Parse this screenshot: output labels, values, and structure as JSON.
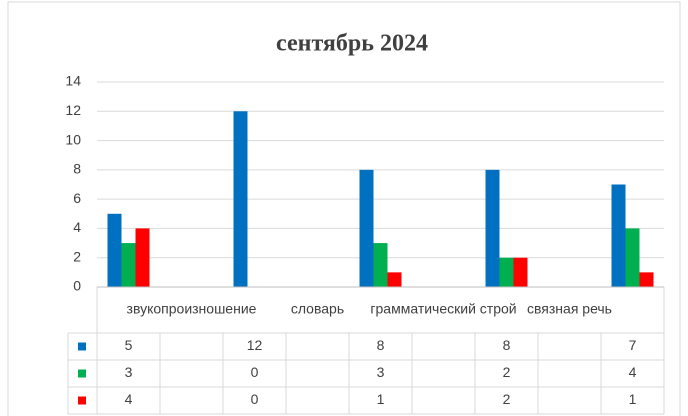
{
  "chart_data": {
    "type": "bar",
    "title": "сентябрь 2024",
    "categories": [
      null,
      "звукопроизношение",
      null,
      "словарь",
      null,
      "грамматический строй",
      null,
      "связная речь",
      null
    ],
    "series": [
      {
        "color": "#0070c0",
        "values": [
          5,
          null,
          12,
          null,
          8,
          null,
          8,
          null,
          7
        ]
      },
      {
        "color": "#00b050",
        "values": [
          3,
          null,
          0,
          null,
          3,
          null,
          2,
          null,
          4
        ]
      },
      {
        "color": "#ff0000",
        "values": [
          4,
          null,
          0,
          null,
          1,
          null,
          2,
          null,
          1
        ]
      }
    ],
    "ylim": [
      0,
      14
    ],
    "yticks": [
      0,
      2,
      4,
      6,
      8,
      10,
      12,
      14
    ],
    "grid": true
  }
}
